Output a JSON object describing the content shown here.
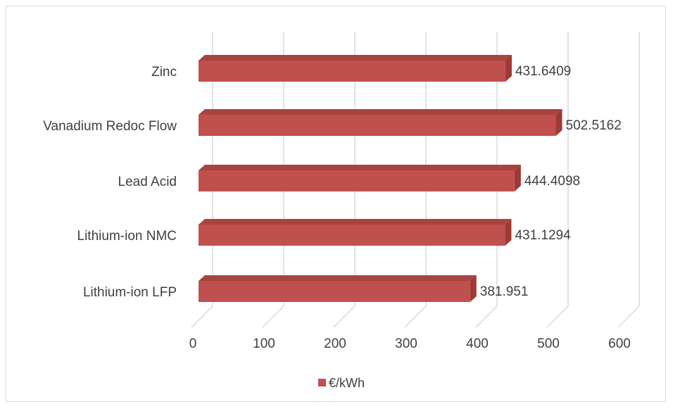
{
  "chart_data": {
    "type": "bar",
    "orientation": "horizontal",
    "style": "3d",
    "categories": [
      "Zinc",
      "Vanadium Redoc Flow",
      "Lead Acid",
      "Lithium-ion NMC",
      "Lithium-ion LFP"
    ],
    "series": [
      {
        "name": "€/kWh",
        "color": "#c0504d",
        "values": [
          431.6409,
          502.5162,
          444.4098,
          431.1294,
          381.951
        ],
        "data_labels": [
          "431.6409",
          "502.5162",
          "444.4098",
          "431.1294",
          "381.951"
        ]
      }
    ],
    "xlim": [
      0,
      600
    ],
    "xticks": [
      0,
      100,
      200,
      300,
      400,
      500,
      600
    ],
    "grid": true,
    "legend_position": "bottom"
  }
}
